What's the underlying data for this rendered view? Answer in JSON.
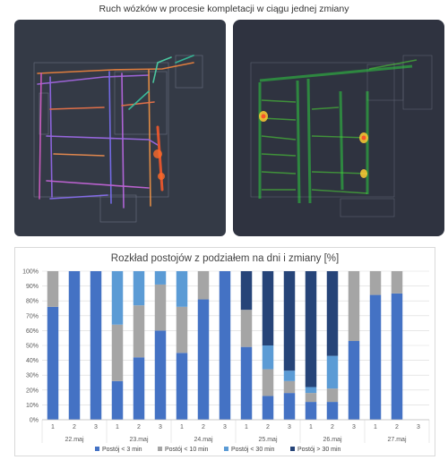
{
  "page_title": "Ruch wózków w procesie kompletacji w ciągu jednej zmiany",
  "colors": {
    "heatmap_bg_left": "#343a46",
    "heatmap_bg_right": "#2f3340"
  },
  "chart_data": {
    "type": "bar",
    "stacked": true,
    "title": "Rozkład postojów z podziałem na dni i zmiany [%]",
    "categories": [
      "1",
      "2",
      "3",
      "1",
      "2",
      "3",
      "1",
      "2",
      "3",
      "1",
      "2",
      "3",
      "1",
      "2",
      "3",
      "1",
      "2",
      "3"
    ],
    "groups": [
      {
        "label": "22.maj",
        "categories": [
          "1",
          "2",
          "3"
        ]
      },
      {
        "label": "23.maj",
        "categories": [
          "1",
          "2",
          "3"
        ]
      },
      {
        "label": "24.maj",
        "categories": [
          "1",
          "2",
          "3"
        ]
      },
      {
        "label": "25.maj",
        "categories": [
          "1",
          "2",
          "3"
        ]
      },
      {
        "label": "26.maj",
        "categories": [
          "1",
          "2",
          "3"
        ]
      },
      {
        "label": "27.maj",
        "categories": [
          "1",
          "2",
          "3"
        ]
      }
    ],
    "ylim": [
      0,
      100
    ],
    "yticks": [
      "0%",
      "10%",
      "20%",
      "30%",
      "40%",
      "50%",
      "60%",
      "70%",
      "80%",
      "90%",
      "100%"
    ],
    "legend_position": "bottom",
    "series": [
      {
        "name": "Postój < 3 min",
        "color": "#4472c4",
        "values": [
          76,
          100,
          100,
          26,
          42,
          60,
          45,
          81,
          100,
          49,
          16,
          18,
          12,
          12,
          53,
          84,
          85,
          0
        ]
      },
      {
        "name": "Postój < 10 min",
        "color": "#a5a5a5",
        "values": [
          24,
          0,
          0,
          38,
          35,
          31,
          31,
          19,
          0,
          25,
          18,
          8,
          6,
          9,
          47,
          16,
          15,
          0
        ]
      },
      {
        "name": "Postój < 30 min",
        "color": "#5b9bd5",
        "values": [
          0,
          0,
          0,
          36,
          23,
          9,
          24,
          0,
          0,
          0,
          16,
          7,
          4,
          22,
          0,
          0,
          0,
          0
        ]
      },
      {
        "name": "Postój > 30 min",
        "color": "#264478",
        "values": [
          0,
          0,
          0,
          0,
          0,
          0,
          0,
          0,
          0,
          26,
          50,
          67,
          78,
          57,
          0,
          0,
          0,
          0
        ]
      }
    ]
  }
}
